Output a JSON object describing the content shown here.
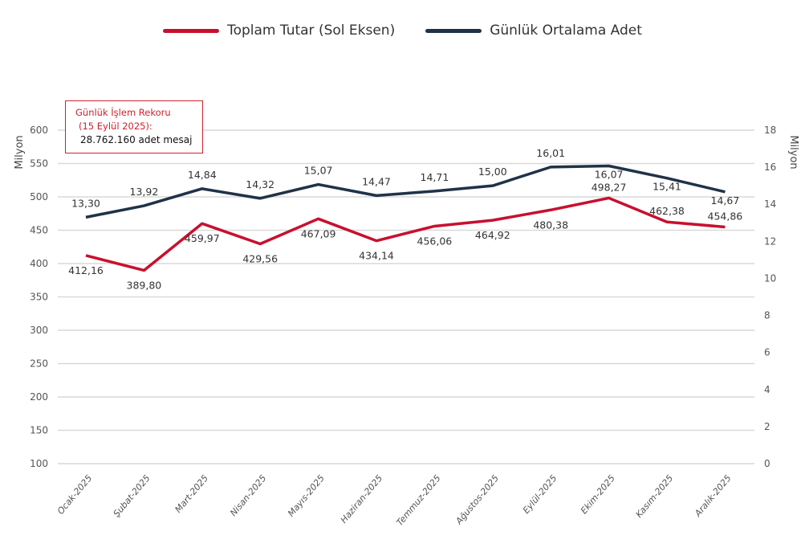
{
  "chart_data": {
    "type": "line",
    "categories": [
      "Ocak-2025",
      "Şubat-2025",
      "Mart-2025",
      "Nisan-2025",
      "Mayıs-2025",
      "Haziran-2025",
      "Temmuz-2025",
      "Ağustos-2025",
      "Eylül-2025",
      "Ekim-2025",
      "Kasım-2025",
      "Aralık-2025"
    ],
    "series": [
      {
        "name": "Toplam Tutar (Sol Eksen)",
        "axis": "left",
        "color": "#c8102e",
        "values": [
          412.16,
          389.8,
          459.97,
          429.56,
          467.09,
          434.14,
          456.06,
          464.92,
          480.38,
          498.27,
          462.38,
          454.86
        ],
        "labels": [
          "412,16",
          "389,80",
          "459,97",
          "429,56",
          "467,09",
          "434,14",
          "456,06",
          "464,92",
          "480,38",
          "498,27",
          "462,38",
          "454,86"
        ],
        "label_side": [
          "below",
          "below",
          "below",
          "below",
          "below",
          "below",
          "below",
          "below",
          "below",
          "above",
          "above",
          "above"
        ]
      },
      {
        "name": "Günlük Ortalama Adet",
        "axis": "right",
        "color": "#1f3347",
        "values": [
          13.3,
          13.92,
          14.84,
          14.32,
          15.07,
          14.47,
          14.71,
          15.0,
          16.01,
          16.07,
          15.41,
          14.67
        ],
        "labels": [
          "13,30",
          "13,92",
          "14,84",
          "14,32",
          "15,07",
          "14,47",
          "14,71",
          "15,00",
          "16,01",
          "16,07",
          "15,41",
          "14,67"
        ],
        "label_side": [
          "above",
          "above",
          "above",
          "above",
          "above",
          "above",
          "above",
          "above",
          "above",
          "below",
          "below",
          "below"
        ]
      }
    ],
    "ylabel": "Milyon",
    "y2label": "Milyon",
    "ylim": [
      100,
      600
    ],
    "yticks": [
      "100",
      "150",
      "200",
      "250",
      "300",
      "350",
      "400",
      "450",
      "500",
      "550",
      "600"
    ],
    "y2lim": [
      0,
      18
    ],
    "y2ticks": [
      "0",
      "2",
      "4",
      "6",
      "8",
      "10",
      "12",
      "14",
      "16",
      "18"
    ],
    "grid": true,
    "legend": "top-center",
    "annotation": {
      "line1": "Günlük İşlem Rekoru",
      "line2": "(15 Eylül 2025):",
      "line3": "28.762.160 adet mesaj"
    }
  }
}
